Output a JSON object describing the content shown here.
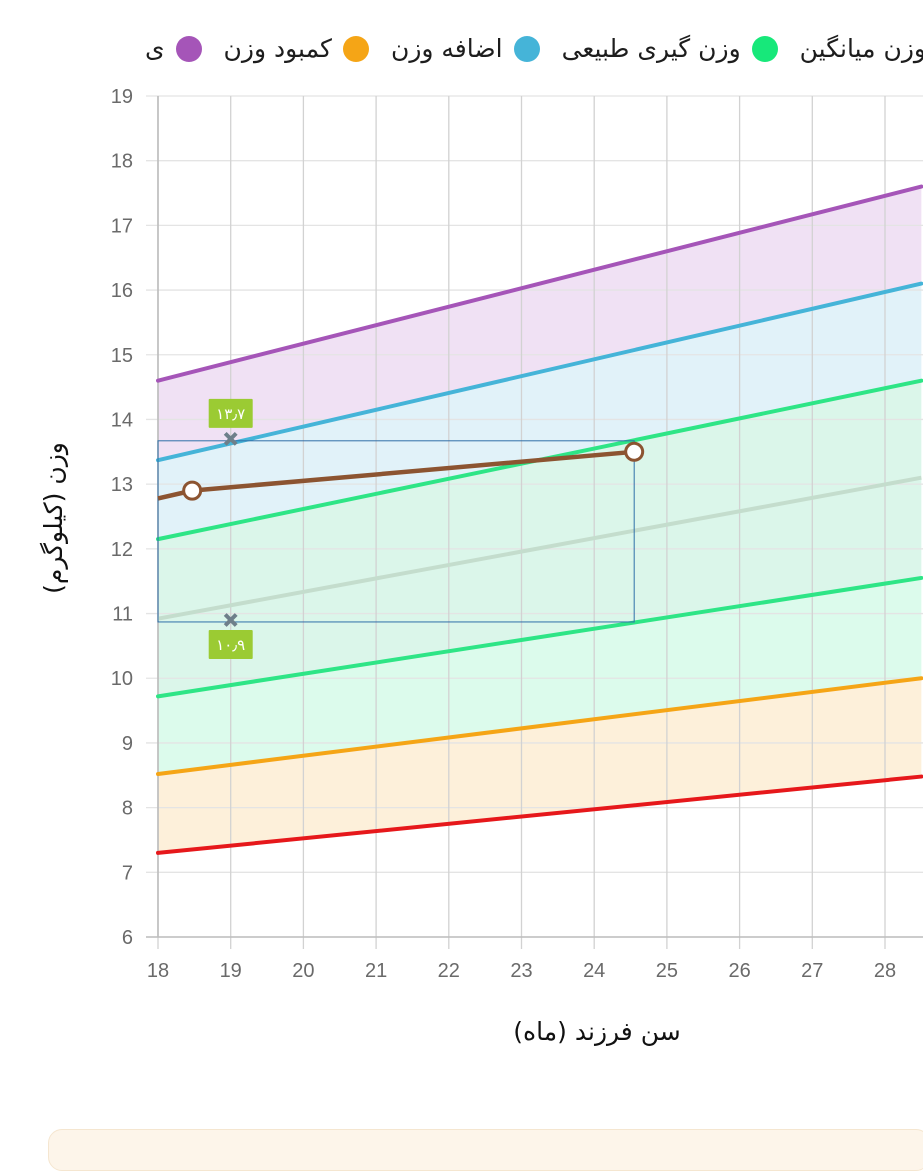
{
  "legend": [
    {
      "label": "وزن میانگین",
      "color": "#d6d6d6",
      "icon": "circle-dot"
    },
    {
      "label": "وزن گیری طبیعی",
      "color": "#17e87a",
      "icon": "circle-dot"
    },
    {
      "label": "اضافه وزن",
      "color": "#45b4d8",
      "icon": "circle-dot"
    },
    {
      "label": "کمبود وزن",
      "color": "#f5a516",
      "icon": "circle-dot"
    },
    {
      "label": "ی",
      "color": "#a555b8",
      "icon": "circle-dot"
    }
  ],
  "chart_data": {
    "type": "line",
    "xlabel": "سن فرزند (ماه)",
    "ylabel": "وزن (کیلوگرم)",
    "xlim": [
      18,
      28.5
    ],
    "ylim": [
      6,
      19
    ],
    "xticks": [
      "18",
      "19",
      "20",
      "21",
      "22",
      "23",
      "24",
      "25",
      "26",
      "27",
      "28"
    ],
    "yticks": [
      "6",
      "7",
      "8",
      "9",
      "10",
      "11",
      "12",
      "13",
      "14",
      "15",
      "16",
      "17",
      "18",
      "19"
    ],
    "grid": true,
    "bands": [
      {
        "name": "purple-band",
        "color": "#a555b8",
        "fill": "#f0e1f4",
        "start": 14.6,
        "end": 17.6
      },
      {
        "name": "blue-band",
        "color": "#45b4d8",
        "fill": "#e1f2f9",
        "start": 13.37,
        "end": 16.1
      },
      {
        "name": "green-upper-band",
        "color": "#2ee586",
        "fill": "#dbf6ea",
        "start": 12.15,
        "end": 14.6
      },
      {
        "name": "green-lower-band",
        "color": "#2ee586",
        "fill": "#dcfbec",
        "start": 9.72,
        "end": 11.55
      },
      {
        "name": "orange-band",
        "color": "#f5a516",
        "fill": "#fdf0da",
        "start": 8.52,
        "end": 10.0
      },
      {
        "name": "red-band",
        "color": "#e6181b",
        "fill": "#fddada",
        "start": 7.3,
        "end": 8.48
      }
    ],
    "average_line": {
      "color": "#c4ddcd",
      "start": 10.92,
      "end": 13.1
    },
    "series": [
      {
        "color": "#8c5431",
        "x": [
          17.5,
          18.47,
          24.55
        ],
        "y": [
          12.65,
          12.9,
          13.5
        ]
      }
    ],
    "range_box": {
      "x": [
        18,
        24.55
      ],
      "y": [
        10.87,
        13.67
      ],
      "color": "#2f6fa8"
    },
    "markers": [
      {
        "x": 19,
        "y": 13.7,
        "label": "۱۳٫۷",
        "label_color": "#9bcb33"
      },
      {
        "x": 19,
        "y": 10.9,
        "label": "۱۰٫۹",
        "label_color": "#9bcb33"
      }
    ]
  }
}
